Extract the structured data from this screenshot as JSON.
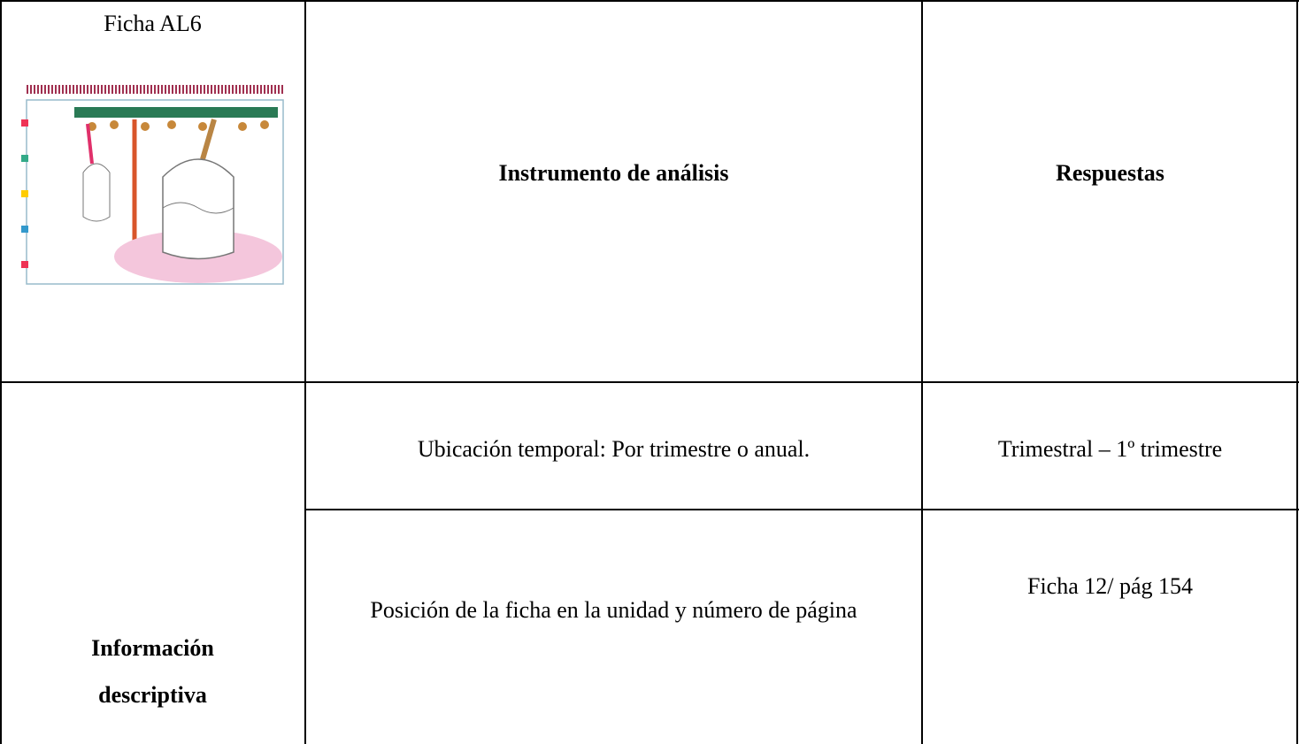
{
  "table": {
    "header": {
      "caption": "Ficha AL6",
      "columns": [
        "Instrumento de análisis",
        "Respuestas"
      ]
    },
    "section": {
      "label": "Información descriptiva",
      "rows": [
        [
          "Ubicación temporal: Por trimestre o anual.",
          "Trimestral – 1º trimestre"
        ],
        [
          "Posición de la ficha en la unidad y número de página",
          "Ficha 12/ pág 154"
        ]
      ]
    }
  }
}
